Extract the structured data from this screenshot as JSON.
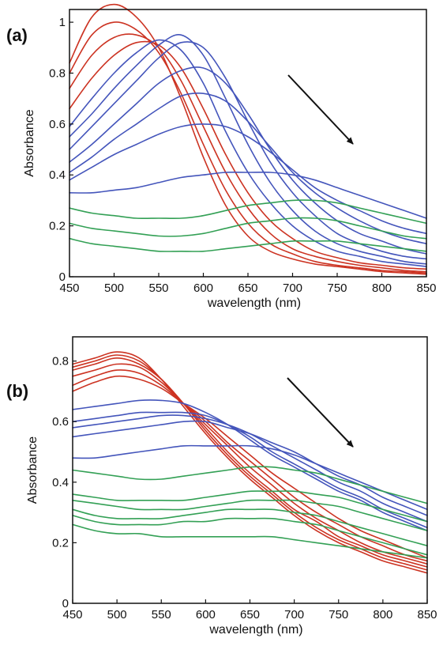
{
  "chart_data": [
    {
      "type": "line",
      "panel_label": "(a)",
      "xlabel": "wavelength (nm)",
      "ylabel": "Absorbance",
      "xlim": [
        450,
        850
      ],
      "ylim": [
        0,
        1.05
      ],
      "xticks": [
        450,
        500,
        550,
        600,
        650,
        700,
        750,
        800,
        850
      ],
      "yticks": [
        0,
        0.2,
        0.4,
        0.6,
        0.8,
        1
      ],
      "ytick_labels": [
        "0",
        "0.2",
        "0.4",
        "0.6",
        "0.8",
        "1"
      ],
      "grid": false,
      "annotation": "arrow pointing down-right",
      "colors": {
        "red": "#cc3322",
        "blue": "#4455bb",
        "green": "#33a055"
      },
      "x": [
        450,
        475,
        500,
        525,
        550,
        575,
        600,
        625,
        650,
        675,
        700,
        725,
        750,
        775,
        800,
        825,
        850
      ],
      "series": [
        {
          "color": "red",
          "values": [
            0.84,
            1.02,
            1.07,
            1.02,
            0.9,
            0.7,
            0.47,
            0.28,
            0.16,
            0.1,
            0.07,
            0.05,
            0.04,
            0.03,
            0.02,
            0.015,
            0.01
          ]
        },
        {
          "color": "red",
          "values": [
            0.8,
            0.95,
            1.0,
            0.97,
            0.88,
            0.72,
            0.52,
            0.34,
            0.21,
            0.13,
            0.09,
            0.06,
            0.045,
            0.035,
            0.025,
            0.02,
            0.015
          ]
        },
        {
          "color": "red",
          "values": [
            0.74,
            0.87,
            0.94,
            0.95,
            0.9,
            0.77,
            0.59,
            0.41,
            0.27,
            0.17,
            0.11,
            0.08,
            0.06,
            0.045,
            0.035,
            0.025,
            0.02
          ]
        },
        {
          "color": "red",
          "values": [
            0.66,
            0.78,
            0.87,
            0.92,
            0.91,
            0.82,
            0.66,
            0.48,
            0.33,
            0.22,
            0.15,
            0.1,
            0.075,
            0.055,
            0.045,
            0.035,
            0.03
          ]
        },
        {
          "color": "blue",
          "values": [
            0.59,
            0.7,
            0.8,
            0.88,
            0.93,
            0.89,
            0.76,
            0.57,
            0.41,
            0.29,
            0.2,
            0.14,
            0.1,
            0.08,
            0.06,
            0.05,
            0.04
          ]
        },
        {
          "color": "blue",
          "values": [
            0.55,
            0.64,
            0.74,
            0.83,
            0.91,
            0.95,
            0.87,
            0.7,
            0.52,
            0.37,
            0.26,
            0.18,
            0.13,
            0.1,
            0.08,
            0.06,
            0.05
          ]
        },
        {
          "color": "blue",
          "values": [
            0.5,
            0.59,
            0.68,
            0.77,
            0.86,
            0.92,
            0.9,
            0.78,
            0.61,
            0.45,
            0.33,
            0.24,
            0.17,
            0.13,
            0.1,
            0.08,
            0.07
          ]
        },
        {
          "color": "blue",
          "values": [
            0.45,
            0.52,
            0.6,
            0.68,
            0.76,
            0.81,
            0.82,
            0.76,
            0.64,
            0.5,
            0.38,
            0.29,
            0.22,
            0.17,
            0.14,
            0.11,
            0.09
          ]
        },
        {
          "color": "blue",
          "values": [
            0.41,
            0.47,
            0.54,
            0.6,
            0.66,
            0.71,
            0.72,
            0.69,
            0.61,
            0.51,
            0.41,
            0.33,
            0.27,
            0.22,
            0.18,
            0.15,
            0.13
          ]
        },
        {
          "color": "blue",
          "values": [
            0.38,
            0.43,
            0.48,
            0.52,
            0.56,
            0.59,
            0.6,
            0.59,
            0.55,
            0.49,
            0.42,
            0.35,
            0.3,
            0.26,
            0.22,
            0.19,
            0.17
          ]
        },
        {
          "color": "blue",
          "values": [
            0.33,
            0.33,
            0.34,
            0.35,
            0.37,
            0.39,
            0.4,
            0.41,
            0.41,
            0.41,
            0.4,
            0.38,
            0.35,
            0.32,
            0.29,
            0.26,
            0.23
          ]
        },
        {
          "color": "green",
          "values": [
            0.27,
            0.25,
            0.24,
            0.23,
            0.23,
            0.23,
            0.24,
            0.26,
            0.28,
            0.29,
            0.3,
            0.3,
            0.29,
            0.27,
            0.25,
            0.23,
            0.21
          ]
        },
        {
          "color": "green",
          "values": [
            0.21,
            0.19,
            0.18,
            0.17,
            0.16,
            0.16,
            0.17,
            0.19,
            0.21,
            0.22,
            0.23,
            0.23,
            0.22,
            0.2,
            0.18,
            0.16,
            0.15
          ]
        },
        {
          "color": "green",
          "values": [
            0.15,
            0.13,
            0.12,
            0.11,
            0.1,
            0.1,
            0.1,
            0.11,
            0.12,
            0.13,
            0.14,
            0.14,
            0.14,
            0.13,
            0.12,
            0.11,
            0.1
          ]
        }
      ]
    },
    {
      "type": "line",
      "panel_label": "(b)",
      "xlabel": "wavelength (nm)",
      "ylabel": "Absorbance",
      "xlim": [
        450,
        850
      ],
      "ylim": [
        0,
        0.88
      ],
      "xticks": [
        450,
        500,
        550,
        600,
        650,
        700,
        750,
        800,
        850
      ],
      "yticks": [
        0,
        0.2,
        0.4,
        0.6,
        0.8
      ],
      "ytick_labels": [
        "0",
        "0.2",
        "0.4",
        "0.6",
        "0.8"
      ],
      "grid": false,
      "annotation": "arrow pointing down-right",
      "colors": {
        "red": "#cc3322",
        "blue": "#4455bb",
        "green": "#33a055"
      },
      "x": [
        450,
        475,
        500,
        525,
        550,
        575,
        600,
        625,
        650,
        675,
        700,
        725,
        750,
        775,
        800,
        825,
        850
      ],
      "series": [
        {
          "color": "red",
          "values": [
            0.79,
            0.81,
            0.83,
            0.81,
            0.74,
            0.65,
            0.56,
            0.48,
            0.41,
            0.35,
            0.29,
            0.24,
            0.2,
            0.17,
            0.14,
            0.12,
            0.1
          ]
        },
        {
          "color": "red",
          "values": [
            0.78,
            0.8,
            0.82,
            0.8,
            0.74,
            0.66,
            0.57,
            0.49,
            0.42,
            0.36,
            0.3,
            0.25,
            0.21,
            0.18,
            0.15,
            0.13,
            0.11
          ]
        },
        {
          "color": "red",
          "values": [
            0.77,
            0.79,
            0.81,
            0.79,
            0.74,
            0.66,
            0.58,
            0.5,
            0.43,
            0.37,
            0.31,
            0.27,
            0.22,
            0.19,
            0.16,
            0.14,
            0.12
          ]
        },
        {
          "color": "red",
          "values": [
            0.75,
            0.77,
            0.79,
            0.78,
            0.73,
            0.66,
            0.59,
            0.52,
            0.45,
            0.39,
            0.33,
            0.28,
            0.24,
            0.2,
            0.17,
            0.15,
            0.13
          ]
        },
        {
          "color": "red",
          "values": [
            0.72,
            0.75,
            0.77,
            0.76,
            0.72,
            0.66,
            0.6,
            0.53,
            0.47,
            0.41,
            0.35,
            0.3,
            0.26,
            0.22,
            0.19,
            0.16,
            0.14
          ]
        },
        {
          "color": "red",
          "values": [
            0.7,
            0.73,
            0.75,
            0.74,
            0.71,
            0.66,
            0.61,
            0.55,
            0.49,
            0.43,
            0.38,
            0.33,
            0.28,
            0.24,
            0.21,
            0.18,
            0.15
          ]
        },
        {
          "color": "blue",
          "values": [
            0.64,
            0.65,
            0.66,
            0.67,
            0.67,
            0.66,
            0.63,
            0.59,
            0.54,
            0.49,
            0.45,
            0.41,
            0.37,
            0.34,
            0.3,
            0.27,
            0.24
          ]
        },
        {
          "color": "blue",
          "values": [
            0.6,
            0.61,
            0.62,
            0.63,
            0.63,
            0.63,
            0.62,
            0.59,
            0.55,
            0.5,
            0.46,
            0.42,
            0.38,
            0.35,
            0.31,
            0.28,
            0.25
          ]
        },
        {
          "color": "blue",
          "values": [
            0.58,
            0.59,
            0.6,
            0.61,
            0.62,
            0.62,
            0.61,
            0.59,
            0.56,
            0.52,
            0.48,
            0.44,
            0.4,
            0.37,
            0.33,
            0.3,
            0.27
          ]
        },
        {
          "color": "blue",
          "values": [
            0.55,
            0.56,
            0.57,
            0.58,
            0.59,
            0.6,
            0.6,
            0.58,
            0.56,
            0.53,
            0.5,
            0.46,
            0.42,
            0.39,
            0.35,
            0.32,
            0.29
          ]
        },
        {
          "color": "blue",
          "values": [
            0.48,
            0.48,
            0.49,
            0.5,
            0.51,
            0.52,
            0.52,
            0.52,
            0.52,
            0.51,
            0.49,
            0.46,
            0.43,
            0.4,
            0.37,
            0.34,
            0.31
          ]
        },
        {
          "color": "green",
          "values": [
            0.44,
            0.43,
            0.42,
            0.41,
            0.41,
            0.42,
            0.43,
            0.44,
            0.45,
            0.45,
            0.44,
            0.43,
            0.41,
            0.39,
            0.37,
            0.35,
            0.33
          ]
        },
        {
          "color": "green",
          "values": [
            0.36,
            0.35,
            0.34,
            0.34,
            0.34,
            0.34,
            0.35,
            0.36,
            0.37,
            0.37,
            0.37,
            0.36,
            0.35,
            0.33,
            0.31,
            0.29,
            0.27
          ]
        },
        {
          "color": "green",
          "values": [
            0.34,
            0.33,
            0.32,
            0.31,
            0.31,
            0.31,
            0.32,
            0.33,
            0.34,
            0.34,
            0.34,
            0.33,
            0.32,
            0.3,
            0.28,
            0.26,
            0.24
          ]
        },
        {
          "color": "green",
          "values": [
            0.31,
            0.29,
            0.28,
            0.28,
            0.28,
            0.29,
            0.3,
            0.31,
            0.31,
            0.31,
            0.3,
            0.29,
            0.27,
            0.25,
            0.23,
            0.21,
            0.19
          ]
        },
        {
          "color": "green",
          "values": [
            0.29,
            0.27,
            0.26,
            0.26,
            0.26,
            0.27,
            0.27,
            0.28,
            0.28,
            0.28,
            0.27,
            0.26,
            0.24,
            0.22,
            0.2,
            0.18,
            0.16
          ]
        },
        {
          "color": "green",
          "values": [
            0.26,
            0.24,
            0.23,
            0.23,
            0.22,
            0.22,
            0.22,
            0.22,
            0.22,
            0.22,
            0.21,
            0.2,
            0.19,
            0.18,
            0.17,
            0.16,
            0.15
          ]
        }
      ]
    }
  ]
}
